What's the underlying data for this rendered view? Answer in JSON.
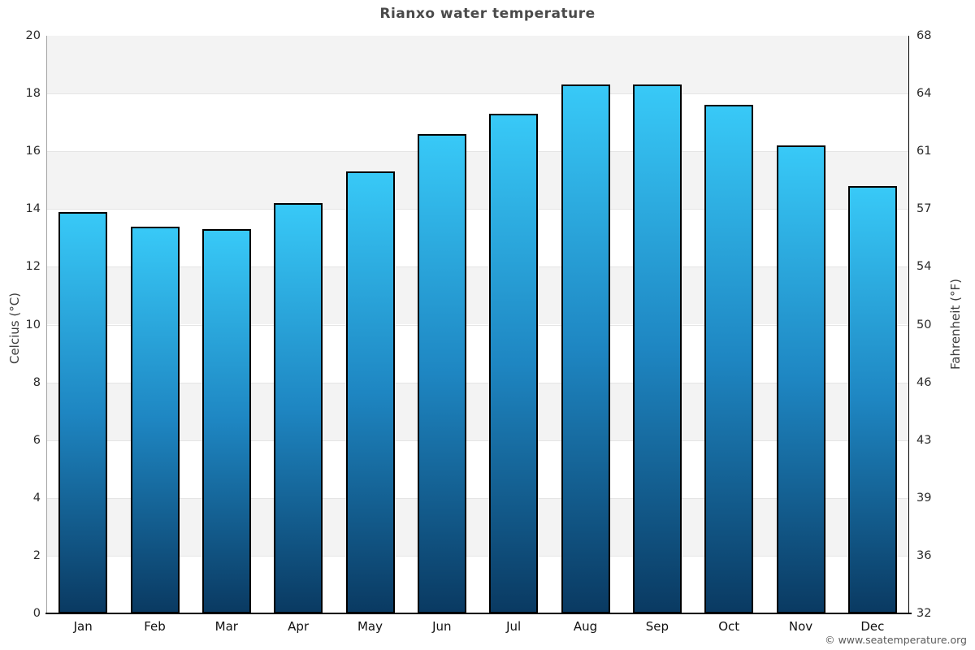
{
  "title": "Rianxo water temperature",
  "footer": {
    "credit": "© www.seatemperature.org"
  },
  "chart_data": {
    "type": "bar",
    "title": "Rianxo water temperature",
    "categories": [
      "Jan",
      "Feb",
      "Mar",
      "Apr",
      "May",
      "Jun",
      "Jul",
      "Aug",
      "Sep",
      "Oct",
      "Nov",
      "Dec"
    ],
    "values": [
      13.9,
      13.4,
      13.3,
      14.2,
      15.3,
      16.6,
      17.3,
      18.3,
      18.3,
      17.6,
      16.2,
      14.8
    ],
    "series_name": "Water temperature",
    "xlabel": "",
    "ylabel_left": "Celcius (°C)",
    "ylabel_right": "Fahrenheit (°F)",
    "ylim": [
      0,
      20
    ],
    "yticks_celsius": [
      0,
      2,
      4,
      6,
      8,
      10,
      12,
      14,
      16,
      18,
      20
    ],
    "yticks_fahrenheit_labels": [
      "32",
      "36",
      "39",
      "43",
      "46",
      "50",
      "54",
      "57",
      "61",
      "64",
      "68"
    ],
    "legend": "none",
    "grid": "alternating horizontal bands every 2°C, light gray / white",
    "colors": {
      "bar_gradient_top": "#38c9f7",
      "bar_gradient_mid": "#1e86c2",
      "bar_gradient_bottom": "#0a3a62",
      "bar_border": "#000000",
      "band_gray": "#f3f3f3",
      "band_white": "#ffffff",
      "gridline": "#e5e5e5",
      "title_color": "#4a4a4a",
      "tick_label_color": "#2b2b2b",
      "footer_color": "#5a5a5a"
    }
  }
}
